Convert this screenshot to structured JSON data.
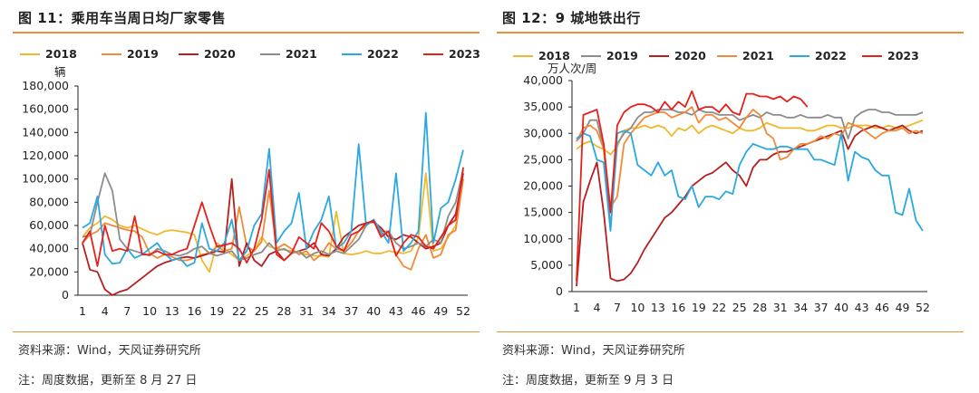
{
  "left": {
    "title": "图 11：乘用车当周日均厂家零售",
    "source": "资料来源：Wind，天风证券研究所",
    "note": "注：周度数据，更新至 8 月 27 日"
  },
  "right": {
    "title": "图 12：9 城地铁出行",
    "source": "资料来源：Wind，天风证券研究所",
    "note": "注：周度数据，更新至 9 月 3 日"
  },
  "colors": {
    "2018": "#f0b82c",
    "2019": "#f08a3a",
    "2020": "#b81e1e",
    "2021": "#8c8c8c",
    "2022": "#2aa8e0",
    "2023": "#e8201c"
  },
  "chart_data": [
    {
      "type": "line",
      "unit_label": "辆",
      "ylim": [
        0,
        180000
      ],
      "yticks": [
        0,
        20000,
        40000,
        60000,
        80000,
        100000,
        120000,
        140000,
        160000,
        180000
      ],
      "ytick_labels": [
        "0",
        "20,000",
        "40,000",
        "60,000",
        "80,000",
        "100,000",
        "120,000",
        "140,000",
        "160,000",
        "180,000"
      ],
      "xlim": [
        1,
        52
      ],
      "xticks": [
        1,
        4,
        7,
        10,
        13,
        16,
        19,
        22,
        25,
        28,
        31,
        34,
        37,
        40,
        43,
        46,
        49,
        52
      ],
      "legend_position": "top",
      "series": [
        {
          "name": "2018",
          "color": "#f0b82c",
          "values": [
            50000,
            58000,
            62000,
            68000,
            65000,
            60000,
            58000,
            60000,
            57000,
            54000,
            52000,
            55000,
            56000,
            55000,
            54000,
            52000,
            30000,
            20000,
            45000,
            40000,
            35000,
            30000,
            34000,
            38000,
            50000,
            42000,
            40000,
            39000,
            38000,
            36000,
            35000,
            34000,
            34000,
            33000,
            72000,
            36000,
            35000,
            36000,
            38000,
            36000,
            36000,
            38000,
            37000,
            36000,
            38000,
            50000,
            105000,
            38000,
            40000,
            50000,
            60000,
            100000
          ]
        },
        {
          "name": "2019",
          "color": "#f08a3a",
          "values": [
            45000,
            52000,
            55000,
            62000,
            60000,
            58000,
            56000,
            55000,
            50000,
            36000,
            32000,
            35000,
            33000,
            30000,
            30000,
            32000,
            35000,
            36000,
            42000,
            38000,
            40000,
            76000,
            42000,
            38000,
            46000,
            90000,
            40000,
            44000,
            40000,
            35000,
            38000,
            30000,
            35000,
            45000,
            40000,
            38000,
            45000,
            55000,
            60000,
            65000,
            55000,
            55000,
            35000,
            25000,
            22000,
            40000,
            52000,
            32000,
            35000,
            52000,
            56000,
            100000
          ]
        },
        {
          "name": "2020",
          "color": "#b81e1e",
          "values": [
            45000,
            22000,
            20000,
            5000,
            0,
            3000,
            5000,
            10000,
            15000,
            20000,
            25000,
            28000,
            30000,
            32000,
            33000,
            32000,
            34000,
            36000,
            38000,
            37000,
            100000,
            25000,
            45000,
            30000,
            25000,
            35000,
            38000,
            30000,
            36000,
            38000,
            40000,
            45000,
            35000,
            34000,
            40000,
            50000,
            55000,
            60000,
            62000,
            63000,
            58000,
            50000,
            48000,
            52000,
            50000,
            45000,
            40000,
            42000,
            45000,
            60000,
            70000,
            105000
          ]
        },
        {
          "name": "2021",
          "color": "#8c8c8c",
          "values": [
            50000,
            52000,
            80000,
            105000,
            90000,
            48000,
            40000,
            38000,
            36000,
            34000,
            40000,
            38000,
            35000,
            34000,
            36000,
            40000,
            42000,
            36000,
            34000,
            36000,
            38000,
            30000,
            32000,
            35000,
            37000,
            45000,
            38000,
            40000,
            36000,
            38000,
            32000,
            36000,
            38000,
            35000,
            38000,
            36000,
            42000,
            48000,
            60000,
            65000,
            52000,
            55000,
            45000,
            40000,
            42000,
            45000,
            42000,
            48000,
            45000,
            68000,
            80000,
            108000
          ]
        },
        {
          "name": "2022",
          "color": "#2aa8e0",
          "values": [
            58000,
            62000,
            85000,
            35000,
            27000,
            28000,
            40000,
            32000,
            35000,
            40000,
            45000,
            36000,
            30000,
            32000,
            25000,
            28000,
            62000,
            40000,
            38000,
            45000,
            65000,
            30000,
            38000,
            60000,
            70000,
            126000,
            45000,
            55000,
            62000,
            88000,
            40000,
            55000,
            65000,
            85000,
            40000,
            45000,
            55000,
            130000,
            60000,
            65000,
            55000,
            45000,
            105000,
            38000,
            45000,
            55000,
            157000,
            45000,
            75000,
            80000,
            100000,
            125000
          ]
        },
        {
          "name": "2023",
          "color": "#e8201c",
          "values": [
            45000,
            55000,
            25000,
            60000,
            38000,
            40000,
            38000,
            68000,
            35000,
            35000,
            38000,
            35000,
            35000,
            38000,
            40000,
            60000,
            80000,
            60000,
            42000,
            43000,
            45000,
            40000,
            28000,
            40000,
            65000,
            108000,
            35000,
            30000,
            36000,
            50000,
            45000,
            40000,
            62000,
            55000,
            42000,
            38000,
            52000,
            55000,
            62000,
            64000,
            50000,
            55000,
            34000,
            45000,
            52000,
            50000,
            42000,
            40000,
            50000,
            60000,
            65000,
            110000
          ]
        }
      ]
    },
    {
      "type": "line",
      "unit_label": "万人次/周",
      "ylim": [
        0,
        40000
      ],
      "yticks": [
        0,
        5000,
        10000,
        15000,
        20000,
        25000,
        30000,
        35000,
        40000
      ],
      "ytick_labels": [
        "0",
        "5,000",
        "10,000",
        "15,000",
        "20,000",
        "25,000",
        "30,000",
        "35,000",
        "40,000"
      ],
      "xlim": [
        1,
        52
      ],
      "xticks": [
        1,
        4,
        7,
        10,
        13,
        16,
        19,
        22,
        25,
        28,
        31,
        34,
        37,
        40,
        43,
        46,
        49,
        52
      ],
      "legend_position": "top",
      "series": [
        {
          "name": "2018",
          "color": "#f0b82c",
          "values": [
            27000,
            28000,
            28500,
            27500,
            27000,
            26000,
            27500,
            30500,
            31000,
            31000,
            31500,
            31000,
            31500,
            31000,
            29500,
            31000,
            30500,
            31500,
            30000,
            31000,
            31500,
            31000,
            30500,
            30000,
            31000,
            30500,
            30500,
            31000,
            32000,
            31500,
            31000,
            31000,
            31000,
            31000,
            30500,
            30500,
            31000,
            31500,
            31500,
            31000,
            31000,
            31500,
            31500,
            31500,
            31000,
            31000,
            31500,
            31000,
            31000,
            31500,
            32000,
            32500
          ]
        },
        {
          "name": "2019",
          "color": "#8c8c8c",
          "values": [
            28500,
            30000,
            32500,
            32500,
            27000,
            12000,
            28000,
            30000,
            31000,
            33000,
            34000,
            34000,
            34500,
            34500,
            34500,
            34000,
            34000,
            33500,
            34500,
            34000,
            34000,
            33500,
            33500,
            33500,
            32500,
            33000,
            33500,
            33000,
            34000,
            33500,
            33500,
            33000,
            33000,
            33500,
            33000,
            33000,
            33000,
            33500,
            33000,
            33000,
            29000,
            33000,
            34000,
            34500,
            34500,
            34000,
            34000,
            33500,
            33500,
            33500,
            33500,
            34000
          ]
        },
        {
          "name": "2020",
          "color": "#b81e1e",
          "values": [
            1000,
            17000,
            21000,
            24500,
            15000,
            2500,
            2000,
            2300,
            3500,
            5500,
            8000,
            10000,
            12000,
            14000,
            15000,
            16500,
            18000,
            20000,
            21000,
            22000,
            22500,
            23500,
            24500,
            23000,
            22000,
            20000,
            23500,
            25000,
            25000,
            26000,
            26500,
            26500,
            27000,
            27500,
            28000,
            28500,
            29000,
            29500,
            30000,
            30500,
            27000,
            29500,
            30500,
            31000,
            31500,
            31000,
            30500,
            31000,
            31500,
            30500,
            30000,
            30500
          ]
        },
        {
          "name": "2021",
          "color": "#f08a3a",
          "values": [
            28500,
            31000,
            31500,
            30500,
            27000,
            16000,
            18000,
            28000,
            30000,
            31500,
            33000,
            33500,
            34000,
            34000,
            33000,
            33500,
            34000,
            35000,
            32000,
            33500,
            33500,
            32500,
            33000,
            32000,
            31000,
            33000,
            34500,
            33500,
            30000,
            29000,
            25000,
            25500,
            27000,
            28000,
            28000,
            28500,
            29500,
            29000,
            30000,
            29500,
            32000,
            31500,
            31000,
            30000,
            29000,
            30000,
            30500,
            30500,
            31000,
            30000,
            30500,
            30000
          ]
        },
        {
          "name": "2022",
          "color": "#2aa8e0",
          "values": [
            29000,
            30000,
            29500,
            25000,
            24500,
            11500,
            30000,
            30500,
            30000,
            24000,
            23000,
            22000,
            24500,
            22000,
            23000,
            18000,
            17500,
            20000,
            16000,
            18000,
            18000,
            17500,
            19000,
            18500,
            24000,
            26500,
            28000,
            27500,
            27000,
            27000,
            27500,
            27500,
            27000,
            27000,
            27000,
            25000,
            25000,
            24500,
            24000,
            30000,
            21000,
            26500,
            25500,
            25000,
            23000,
            22000,
            22000,
            15000,
            14500,
            19500,
            13500,
            11500
          ]
        },
        {
          "name": "2023",
          "color": "#e8201c",
          "values": [
            2000,
            33500,
            34000,
            34500,
            28000,
            15000,
            31500,
            34000,
            35000,
            35500,
            35500,
            35000,
            34000,
            36000,
            34500,
            36000,
            35000,
            38000,
            34500,
            35000,
            35000,
            34000,
            35500,
            34000,
            33500,
            37500,
            37500,
            37000,
            37000,
            36500,
            37000,
            36000,
            37000,
            36500,
            35000
          ]
        }
      ]
    }
  ]
}
